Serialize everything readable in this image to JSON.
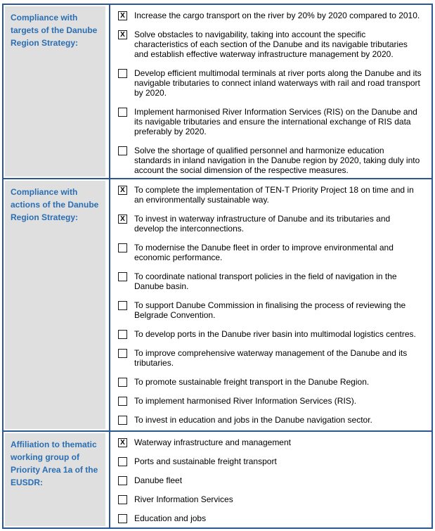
{
  "colors": {
    "table_border": "#2B5797",
    "label_text": "#2A6EB4",
    "label_background": "#DFDFDF",
    "checkbox_border": "#1a1a1a",
    "body_text": "#000000"
  },
  "form": {
    "sections": [
      {
        "label": "Compliance with targets of the Danube Region Strategy:",
        "items": [
          {
            "checked": true,
            "mark": "X",
            "text": "Increase the cargo transport on the river by 20% by 2020 compared to 2010."
          },
          {
            "checked": true,
            "mark": "X",
            "text": "Solve obstacles to navigability, taking into account the specific characteristics of each section of the Danube and its navigable tributaries and establish effective waterway infrastructure management by 2020."
          },
          {
            "checked": false,
            "mark": "",
            "text": "Develop efficient multimodal terminals at river ports along the Danube and its navigable tributaries to connect inland waterways with rail and road transport by 2020."
          },
          {
            "checked": false,
            "mark": "",
            "text": "Implement harmonised River Information Services (RIS) on the Danube and its navigable tributaries and ensure the international exchange of RIS data preferably by 2020."
          },
          {
            "checked": false,
            "mark": "",
            "text": "Solve the shortage of qualified personnel and harmonize education standards in inland navigation in the Danube region by 2020, taking duly into account the social dimension of the respective measures."
          }
        ]
      },
      {
        "label": "Compliance with actions of the Danube Region Strategy:",
        "items": [
          {
            "checked": true,
            "mark": "X",
            "text": "To complete the implementation of TEN-T Priority Project 18 on time and in an environmentally sustainable way."
          },
          {
            "checked": true,
            "mark": "X",
            "text": "To invest in waterway infrastructure of Danube and its tributaries and develop the interconnections."
          },
          {
            "checked": false,
            "mark": "",
            "text": "To modernise the Danube fleet in order to improve environmental and economic performance."
          },
          {
            "checked": false,
            "mark": "",
            "text": "To coordinate national transport policies in the field of navigation in the Danube basin."
          },
          {
            "checked": false,
            "mark": "",
            "text": "To support Danube Commission in finalising the process of reviewing the Belgrade Convention."
          },
          {
            "checked": false,
            "mark": "",
            "text": "To develop ports in the Danube river basin into multimodal logistics centres."
          },
          {
            "checked": false,
            "mark": "",
            "text": "To improve comprehensive waterway management of the Danube and its tributaries."
          },
          {
            "checked": false,
            "mark": "",
            "text": "To promote sustainable freight transport in the Danube Region."
          },
          {
            "checked": false,
            "mark": "",
            "text": "To implement harmonised River Information Services (RIS)."
          },
          {
            "checked": false,
            "mark": "",
            "text": "To invest in education and jobs in the Danube navigation sector."
          }
        ]
      },
      {
        "label": "Affiliation to thematic working group of Priority Area 1a of the EUSDR:",
        "items": [
          {
            "checked": true,
            "mark": "X",
            "text": "Waterway infrastructure and management"
          },
          {
            "checked": false,
            "mark": "",
            "text": "Ports and sustainable freight transport"
          },
          {
            "checked": false,
            "mark": "",
            "text": "Danube fleet"
          },
          {
            "checked": false,
            "mark": "",
            "text": "River Information Services"
          },
          {
            "checked": false,
            "mark": "",
            "text": "Education and jobs"
          }
        ]
      }
    ]
  }
}
